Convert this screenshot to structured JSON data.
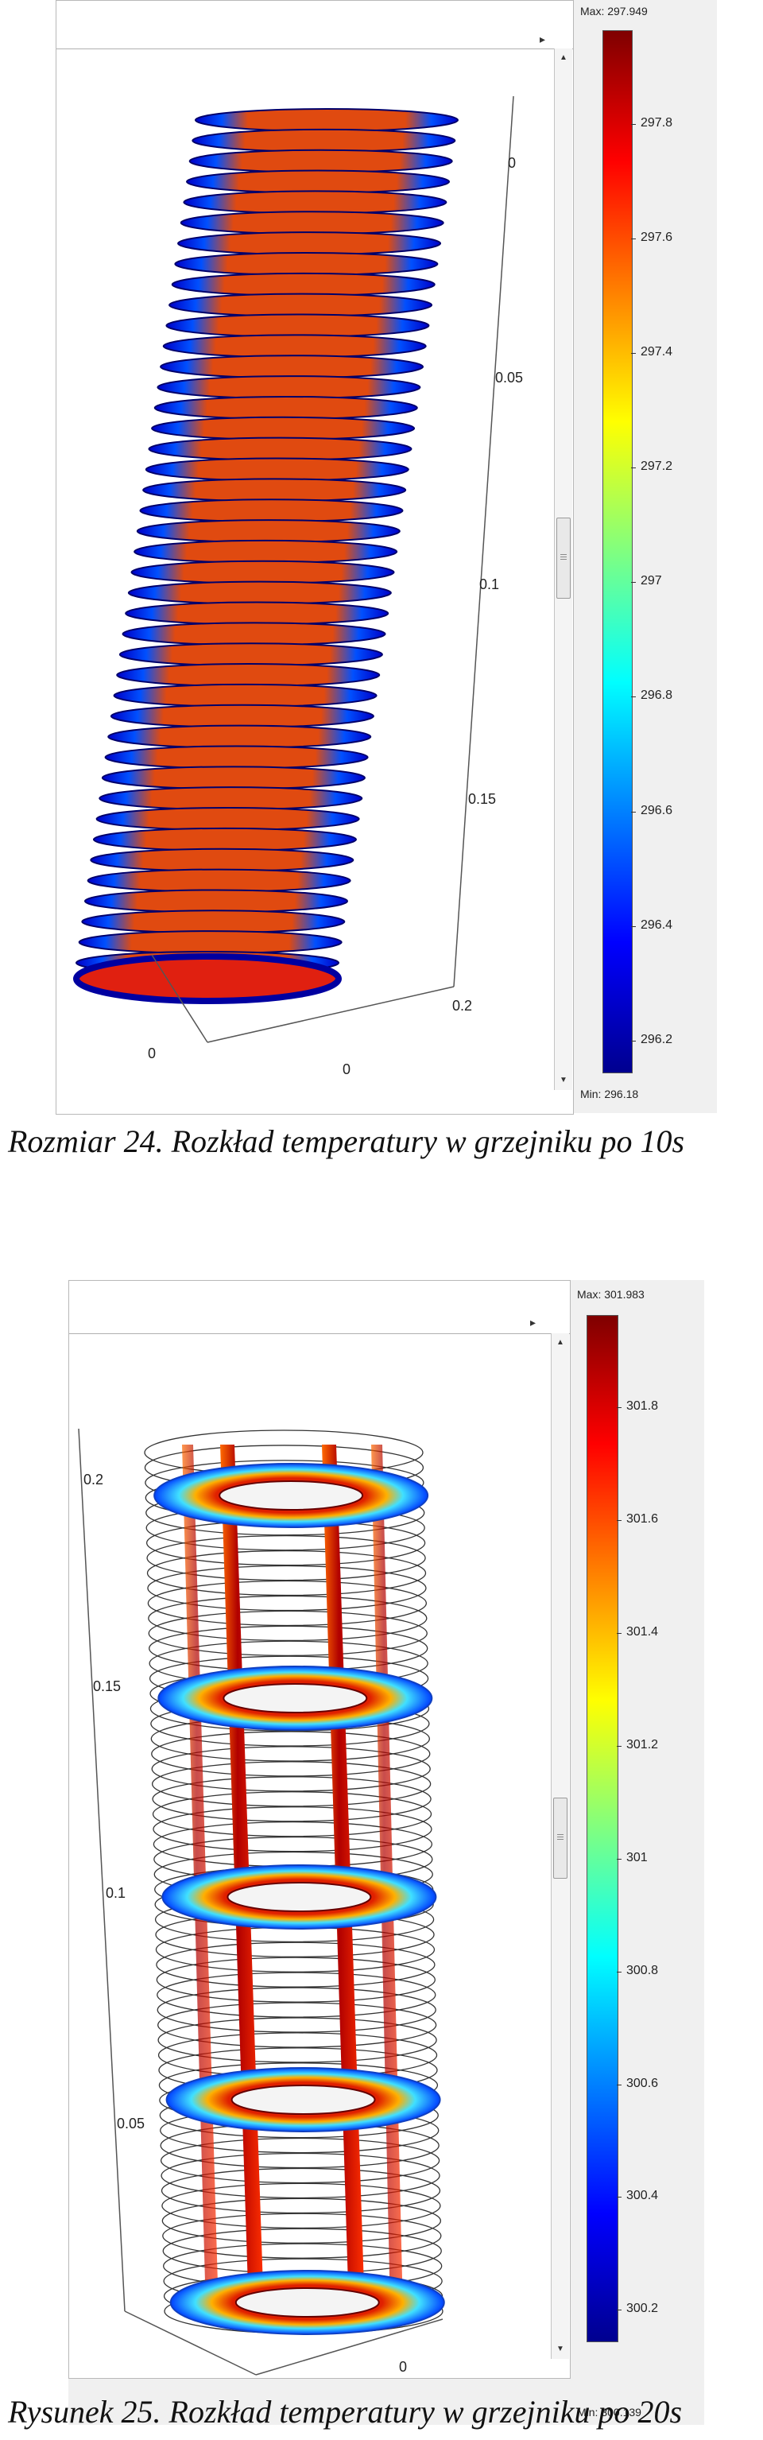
{
  "figures": [
    {
      "colorbar": {
        "max_label": "Max: 297.949",
        "min_label": "Min: 296.18",
        "ticks": [
          "297.8",
          "297.6",
          "297.4",
          "297.2",
          "297",
          "296.8",
          "296.6",
          "296.4",
          "296.2"
        ],
        "colors": [
          "#7f0000",
          "#ff0000",
          "#ff8000",
          "#ffff00",
          "#80ff80",
          "#00ffff",
          "#0080ff",
          "#0000ff",
          "#00008f"
        ]
      },
      "axis_labels": [
        "0",
        "0.05",
        "0.1",
        "0.15",
        "0.2",
        "0",
        "0"
      ],
      "caption": "Rozmiar 24. Rozkład temperatury w grzejniku po 10s"
    },
    {
      "colorbar": {
        "max_label": "Max: 301.983",
        "min_label": "Min: 300.139",
        "ticks": [
          "301.8",
          "301.6",
          "301.4",
          "301.2",
          "301",
          "300.8",
          "300.6",
          "300.4",
          "300.2"
        ],
        "colors": [
          "#7f0000",
          "#ff0000",
          "#ff8000",
          "#ffff00",
          "#80ff80",
          "#00ffff",
          "#0080ff",
          "#0000ff",
          "#00008f"
        ]
      },
      "axis_labels": [
        "0.2",
        "0.15",
        "0.1",
        "0.05",
        "0",
        "0"
      ],
      "caption": "Rysunek 25. Rozkład temperatury w grzejniku po 20s"
    }
  ]
}
